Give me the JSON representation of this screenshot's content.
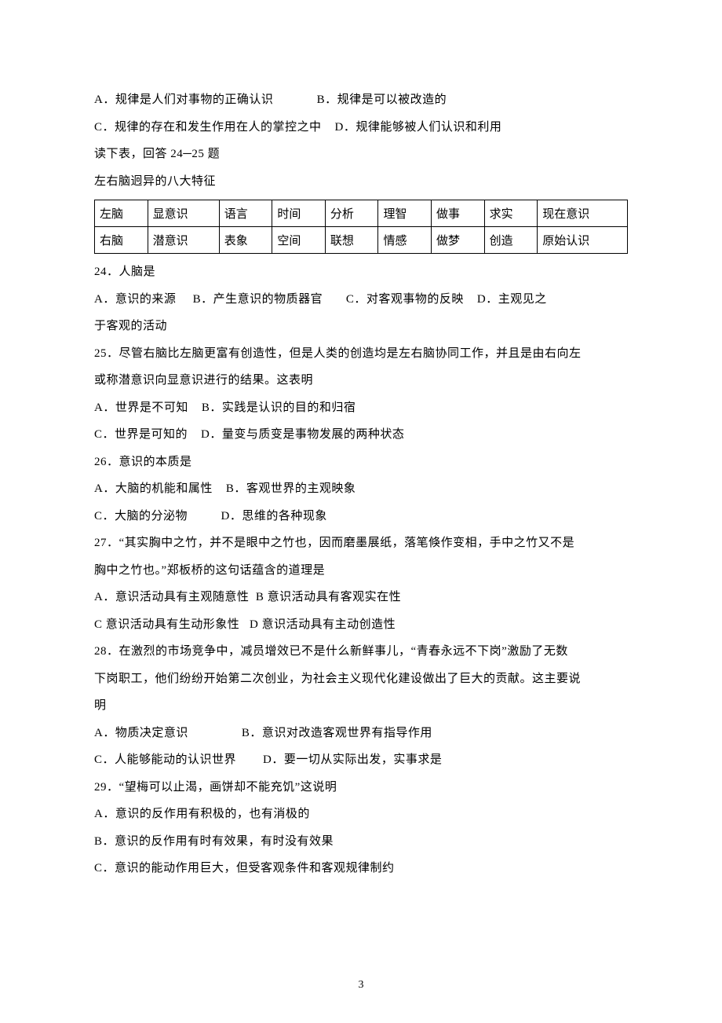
{
  "q23": {
    "optA": "A．规律是人们对事物的正确认识",
    "optB": "B．规律是可以被改造的",
    "optC": "C．规律的存在和发生作用在人的掌控之中",
    "optD": "D．规律能够被人们认识和利用"
  },
  "table_intro1": "读下表，回答 24─25 题",
  "table_intro2": "左右脑迥异的八大特征",
  "brain_table": {
    "cols": [
      "左脑",
      "显意识",
      "语言",
      "时间",
      "分析",
      "理智",
      "做事",
      "求实",
      "现在意识"
    ],
    "rows": [
      [
        "右脑",
        "潜意识",
        "表象",
        "空间",
        "联想",
        "情感",
        "做梦",
        "创造",
        "原始认识"
      ]
    ]
  },
  "q24": {
    "stem": "24．人脑是",
    "line1_a": "A．意识的来源",
    "line1_b": "B．产生意识的物质器官",
    "line1_c": "C．对客观事物的反映",
    "line1_d": "D．主观见之",
    "line2": "于客观的活动"
  },
  "q25": {
    "stem1": "25．尽管右脑比左脑更富有创造性，但是人类的创造均是左右脑协同工作，并且是由右向左",
    "stem2": "或称潜意识向显意识进行的结果。这表明",
    "optA": "A．世界是不可知",
    "optB": "B．实践是认识的目的和归宿",
    "optC": "C．世界是可知的",
    "optD": "D．量变与质变是事物发展的两种状态"
  },
  "q26": {
    "stem": "26．意识的本质是",
    "optA": "A．大脑的机能和属性",
    "optB": "B．客观世界的主观映象",
    "optC": "C．大脑的分泌物",
    "optD": "D．思维的各种现象"
  },
  "q27": {
    "stem1": "27．“其实胸中之竹，并不是眼中之竹也，因而磨墨展纸，落笔倏作变相，手中之竹又不是",
    "stem2": "胸中之竹也。”郑板桥的这句话蕴含的道理是",
    "optA": "A．意识活动具有主观随意性",
    "optB": "B 意识活动具有客观实在性",
    "optC": "C 意识活动具有生动形象性",
    "optD": "D 意识活动具有主动创造性"
  },
  "q28": {
    "stem1": "28．在激烈的市场竞争中，减员增效已不是什么新鲜事儿，“青春永远不下岗”激励了无数",
    "stem2": "下岗职工，他们纷纷开始第二次创业，为社会主义现代化建设做出了巨大的贡献。这主要说",
    "stem3": "明",
    "optA": "A．物质决定意识",
    "optB": "B．意识对改造客观世界有指导作用",
    "optC": "C．人能够能动的认识世界",
    "optD": "D．要一切从实际出发，实事求是"
  },
  "q29": {
    "stem": "29．“望梅可以止渴，画饼却不能充饥”这说明",
    "optA": "A．意识的反作用有积极的，也有消极的",
    "optB": "B．意识的反作用有时有效果，有时没有效果",
    "optC": "C．意识的能动作用巨大，但受客观条件和客观规律制约"
  },
  "pagenum": "3"
}
